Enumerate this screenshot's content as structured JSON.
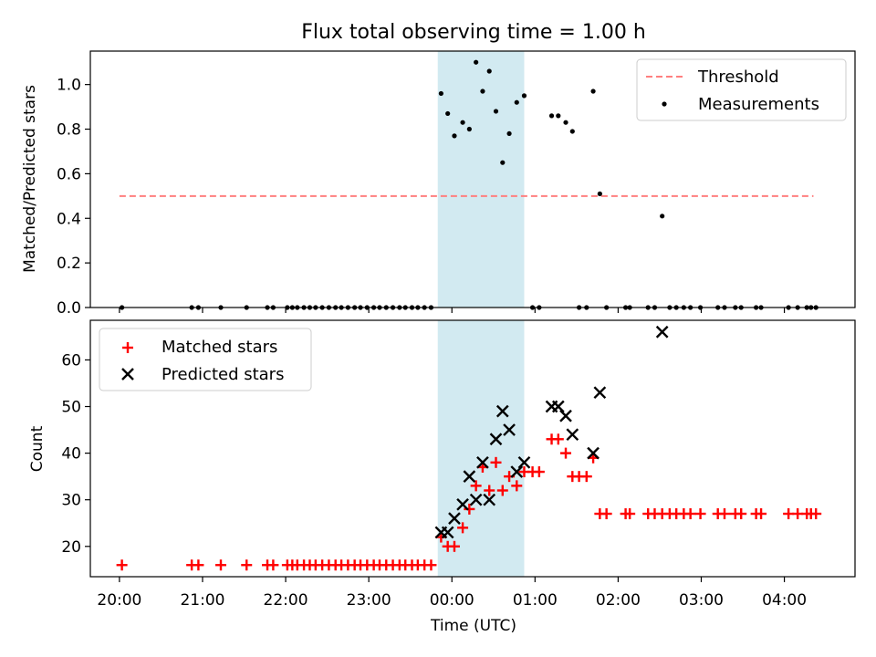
{
  "title": "Flux total observing time = 1.00 h",
  "colors": {
    "threshold": "#ff7f7f",
    "measurement": "#000000",
    "matched": "#ff0000",
    "predicted": "#000000",
    "band": "#add8e6"
  },
  "chart_data": [
    {
      "type": "scatter",
      "panel": "top",
      "ylabel": "Matched/Predicted stars",
      "xlabel": "",
      "xlim_hours": [
        -4.35,
        4.85
      ],
      "ylim": [
        0,
        1.15
      ],
      "yticks": [
        0.0,
        0.2,
        0.4,
        0.6,
        0.8,
        1.0
      ],
      "ytick_labels": [
        "0.0",
        "0.2",
        "0.4",
        "0.6",
        "0.8",
        "1.0"
      ],
      "highlight_band_hours": [
        -0.17,
        0.87
      ],
      "threshold": {
        "name": "Threshold",
        "y": 0.5,
        "x_range_hours": [
          -4.0,
          4.35
        ]
      },
      "legend": [
        "Threshold",
        "Measurements"
      ],
      "legend_position": "upper right",
      "series": [
        {
          "name": "Measurements",
          "x_hours": [
            -3.97,
            -3.13,
            -3.05,
            -2.78,
            -2.47,
            -2.22,
            -2.15,
            -1.98,
            -1.92,
            -1.86,
            -1.78,
            -1.71,
            -1.64,
            -1.56,
            -1.48,
            -1.4,
            -1.33,
            -1.25,
            -1.17,
            -1.1,
            -1.02,
            -0.94,
            -0.87,
            -0.79,
            -0.71,
            -0.63,
            -0.56,
            -0.48,
            -0.41,
            -0.33,
            -0.25,
            -0.13,
            -0.05,
            0.03,
            0.13,
            0.21,
            0.29,
            0.37,
            0.45,
            0.53,
            0.61,
            0.69,
            0.78,
            0.87,
            0.97,
            1.05,
            1.2,
            1.28,
            1.37,
            1.45,
            1.53,
            1.62,
            1.7,
            1.78,
            1.86,
            2.09,
            2.14,
            2.36,
            2.44,
            2.53,
            2.62,
            2.7,
            2.79,
            2.87,
            2.99,
            3.2,
            3.28,
            3.41,
            3.48,
            3.66,
            3.72,
            4.05,
            4.16,
            4.27,
            4.32,
            4.38
          ],
          "y": [
            0,
            0,
            0,
            0,
            0,
            0,
            0,
            0,
            0,
            0,
            0,
            0,
            0,
            0,
            0,
            0,
            0,
            0,
            0,
            0,
            0,
            0,
            0,
            0,
            0,
            0,
            0,
            0,
            0,
            0,
            0,
            0.96,
            0.87,
            0.77,
            0.83,
            0.8,
            1.1,
            0.97,
            1.06,
            0.88,
            0.65,
            0.78,
            0.92,
            0.95,
            0,
            0,
            0.86,
            0.86,
            0.83,
            0.79,
            0,
            0,
            0.97,
            0.51,
            0,
            0,
            0,
            0,
            0,
            0.41,
            0,
            0,
            0,
            0,
            0,
            0,
            0,
            0,
            0,
            0,
            0,
            0,
            0,
            0,
            0,
            0
          ]
        }
      ]
    },
    {
      "type": "scatter",
      "panel": "bottom",
      "ylabel": "Count",
      "xlabel": "Time (UTC)",
      "xlim_hours": [
        -4.35,
        4.85
      ],
      "ylim": [
        13.5,
        68.5
      ],
      "yticks": [
        20,
        30,
        40,
        50,
        60
      ],
      "ytick_labels": [
        "20",
        "30",
        "40",
        "50",
        "60"
      ],
      "xticks_hours": [
        -4,
        -3,
        -2,
        -1,
        0,
        1,
        2,
        3,
        4
      ],
      "xtick_labels": [
        "20:00",
        "21:00",
        "22:00",
        "23:00",
        "00:00",
        "01:00",
        "02:00",
        "03:00",
        "04:00"
      ],
      "highlight_band_hours": [
        -0.17,
        0.87
      ],
      "legend": [
        "Matched stars",
        "Predicted stars"
      ],
      "legend_position": "upper left",
      "series": [
        {
          "name": "Matched stars",
          "marker": "plus",
          "x_hours": [
            -3.97,
            -3.13,
            -3.05,
            -2.78,
            -2.47,
            -2.22,
            -2.15,
            -1.98,
            -1.92,
            -1.86,
            -1.78,
            -1.71,
            -1.64,
            -1.56,
            -1.48,
            -1.4,
            -1.33,
            -1.25,
            -1.17,
            -1.1,
            -1.02,
            -0.94,
            -0.87,
            -0.79,
            -0.71,
            -0.63,
            -0.56,
            -0.48,
            -0.41,
            -0.33,
            -0.25,
            -0.13,
            -0.05,
            0.03,
            0.13,
            0.21,
            0.29,
            0.37,
            0.45,
            0.53,
            0.61,
            0.69,
            0.78,
            0.87,
            0.97,
            1.05,
            1.2,
            1.28,
            1.37,
            1.45,
            1.53,
            1.62,
            1.7,
            1.78,
            1.86,
            2.09,
            2.14,
            2.36,
            2.44,
            2.53,
            2.62,
            2.7,
            2.79,
            2.87,
            2.99,
            3.2,
            3.28,
            3.41,
            3.48,
            3.66,
            3.72,
            4.05,
            4.16,
            4.27,
            4.32,
            4.38
          ],
          "y": [
            16,
            16,
            16,
            16,
            16,
            16,
            16,
            16,
            16,
            16,
            16,
            16,
            16,
            16,
            16,
            16,
            16,
            16,
            16,
            16,
            16,
            16,
            16,
            16,
            16,
            16,
            16,
            16,
            16,
            16,
            16,
            22,
            20,
            20,
            24,
            28,
            33,
            37,
            32,
            38,
            32,
            35,
            33,
            36,
            36,
            36,
            43,
            43,
            40,
            35,
            35,
            35,
            39,
            27,
            27,
            27,
            27,
            27,
            27,
            27,
            27,
            27,
            27,
            27,
            27,
            27,
            27,
            27,
            27,
            27,
            27,
            27,
            27,
            27,
            27,
            27
          ]
        },
        {
          "name": "Predicted stars",
          "marker": "x",
          "x_hours": [
            -0.13,
            -0.05,
            0.03,
            0.13,
            0.21,
            0.29,
            0.37,
            0.45,
            0.53,
            0.61,
            0.69,
            0.78,
            0.87,
            1.2,
            1.28,
            1.37,
            1.45,
            1.7,
            1.78,
            2.53
          ],
          "y": [
            23,
            23,
            26,
            29,
            35,
            30,
            38,
            30,
            43,
            49,
            45,
            36,
            38,
            50,
            50,
            48,
            44,
            40,
            53,
            66
          ]
        }
      ]
    }
  ]
}
